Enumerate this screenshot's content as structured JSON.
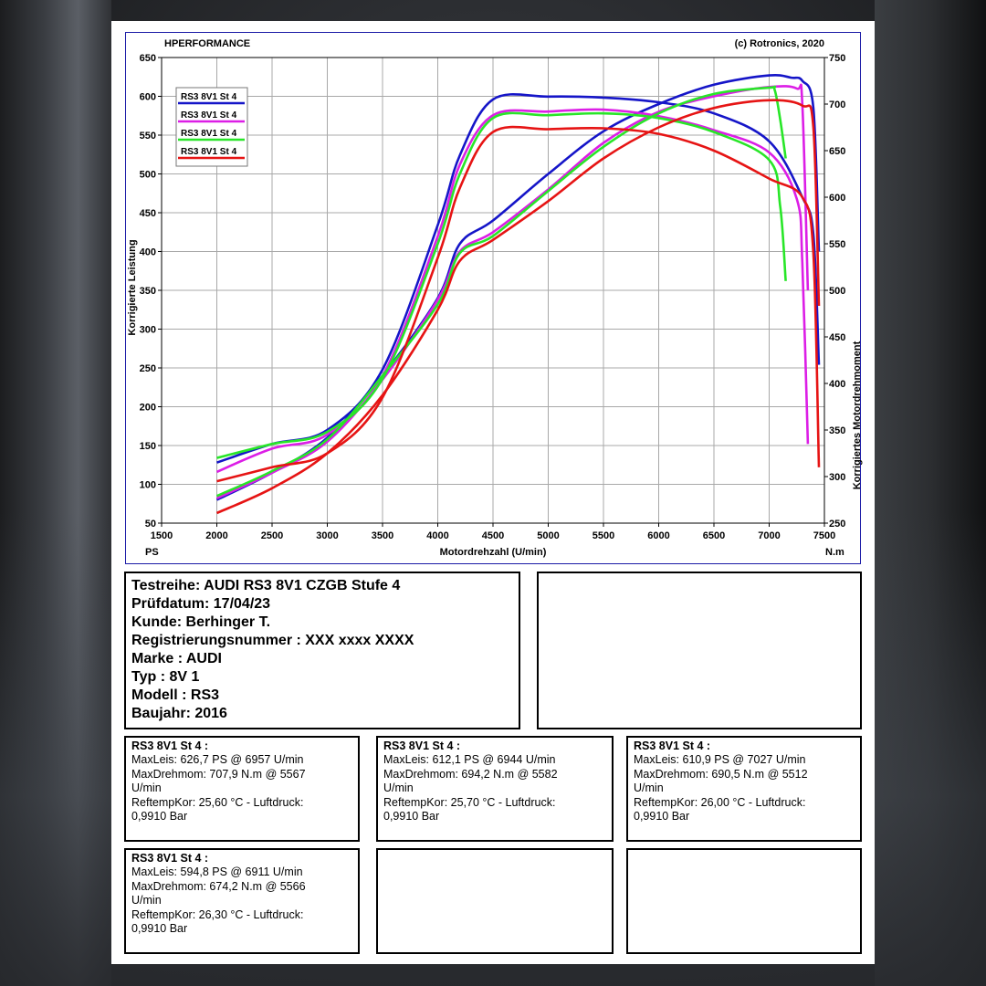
{
  "header": {
    "left": "HPERFORMANCE",
    "right": "(c) Rotronics, 2020"
  },
  "chart_data": {
    "type": "line",
    "xlabel": "Motordrehzahl (U/min)",
    "ylabel_left": "Korrigierte Leistung",
    "ylabel_right": "Korrigiertes Motordrehmoment",
    "unit_left": "PS",
    "unit_right": "N.m",
    "xlim": [
      1500,
      7500
    ],
    "ylim_left": [
      50,
      650
    ],
    "ylim_right": [
      250,
      750
    ],
    "x_ticks": [
      1500,
      2000,
      2500,
      3000,
      3500,
      4000,
      4500,
      5000,
      5500,
      6000,
      6500,
      7000,
      7500
    ],
    "y_ticks_left": [
      50,
      100,
      150,
      200,
      250,
      300,
      350,
      400,
      450,
      500,
      550,
      600,
      650
    ],
    "y_ticks_right": [
      250,
      300,
      350,
      400,
      450,
      500,
      550,
      600,
      650,
      700,
      750
    ],
    "grid": true,
    "legend_position": "top-left",
    "series": [
      {
        "name": "RS3 8V1 St 4",
        "color": "#1515c8",
        "power": [
          [
            2000,
            80
          ],
          [
            2500,
            115
          ],
          [
            3000,
            160
          ],
          [
            3500,
            240
          ],
          [
            4000,
            340
          ],
          [
            4200,
            410
          ],
          [
            4500,
            440
          ],
          [
            5000,
            500
          ],
          [
            5500,
            555
          ],
          [
            6000,
            590
          ],
          [
            6500,
            615
          ],
          [
            7000,
            627
          ],
          [
            7200,
            624
          ],
          [
            7300,
            620
          ],
          [
            7400,
            585
          ],
          [
            7450,
            400
          ]
        ],
        "torque": [
          [
            2000,
            315
          ],
          [
            2500,
            335
          ],
          [
            3000,
            350
          ],
          [
            3500,
            415
          ],
          [
            4000,
            570
          ],
          [
            4200,
            645
          ],
          [
            4500,
            705
          ],
          [
            5000,
            708
          ],
          [
            5500,
            707
          ],
          [
            6000,
            702
          ],
          [
            6500,
            690
          ],
          [
            7000,
            660
          ],
          [
            7300,
            600
          ],
          [
            7400,
            560
          ],
          [
            7450,
            420
          ]
        ]
      },
      {
        "name": "RS3 8V1 St 4",
        "color": "#dc1ee6",
        "power": [
          [
            2000,
            82
          ],
          [
            2500,
            115
          ],
          [
            3000,
            155
          ],
          [
            3500,
            235
          ],
          [
            4000,
            338
          ],
          [
            4200,
            400
          ],
          [
            4500,
            425
          ],
          [
            5000,
            480
          ],
          [
            5500,
            540
          ],
          [
            6000,
            580
          ],
          [
            6500,
            600
          ],
          [
            7000,
            612
          ],
          [
            7250,
            610
          ],
          [
            7300,
            590
          ],
          [
            7350,
            350
          ]
        ],
        "torque": [
          [
            2000,
            305
          ],
          [
            2500,
            330
          ],
          [
            3000,
            345
          ],
          [
            3500,
            408
          ],
          [
            4000,
            558
          ],
          [
            4200,
            635
          ],
          [
            4500,
            688
          ],
          [
            5000,
            692
          ],
          [
            5500,
            694
          ],
          [
            6000,
            687
          ],
          [
            6500,
            672
          ],
          [
            7000,
            648
          ],
          [
            7250,
            598
          ],
          [
            7300,
            530
          ],
          [
            7350,
            335
          ]
        ]
      },
      {
        "name": "RS3 8V1 St 4",
        "color": "#28e628",
        "power": [
          [
            2000,
            85
          ],
          [
            2500,
            117
          ],
          [
            3000,
            158
          ],
          [
            3500,
            240
          ],
          [
            4000,
            332
          ],
          [
            4200,
            398
          ],
          [
            4500,
            420
          ],
          [
            5000,
            478
          ],
          [
            5500,
            535
          ],
          [
            6000,
            578
          ],
          [
            6500,
            603
          ],
          [
            7000,
            611
          ],
          [
            7050,
            608
          ],
          [
            7100,
            570
          ],
          [
            7150,
            520
          ]
        ],
        "torque": [
          [
            2000,
            320
          ],
          [
            2500,
            335
          ],
          [
            3000,
            348
          ],
          [
            3500,
            405
          ],
          [
            4000,
            550
          ],
          [
            4200,
            625
          ],
          [
            4500,
            685
          ],
          [
            5000,
            688
          ],
          [
            5500,
            690
          ],
          [
            6000,
            685
          ],
          [
            6500,
            670
          ],
          [
            7000,
            640
          ],
          [
            7100,
            590
          ],
          [
            7150,
            510
          ]
        ]
      },
      {
        "name": "RS3 8V1 St 4",
        "color": "#e61414",
        "power": [
          [
            2000,
            63
          ],
          [
            2500,
            95
          ],
          [
            3000,
            140
          ],
          [
            3500,
            215
          ],
          [
            4000,
            325
          ],
          [
            4200,
            388
          ],
          [
            4500,
            415
          ],
          [
            5000,
            465
          ],
          [
            5500,
            520
          ],
          [
            6000,
            560
          ],
          [
            6500,
            585
          ],
          [
            7000,
            595
          ],
          [
            7300,
            588
          ],
          [
            7400,
            560
          ],
          [
            7450,
            330
          ]
        ],
        "torque": [
          [
            2000,
            295
          ],
          [
            2500,
            310
          ],
          [
            3000,
            325
          ],
          [
            3500,
            385
          ],
          [
            4000,
            535
          ],
          [
            4200,
            610
          ],
          [
            4500,
            670
          ],
          [
            5000,
            673
          ],
          [
            5500,
            674
          ],
          [
            6000,
            668
          ],
          [
            6500,
            650
          ],
          [
            7000,
            620
          ],
          [
            7300,
            600
          ],
          [
            7400,
            540
          ],
          [
            7450,
            310
          ]
        ]
      }
    ]
  },
  "info": {
    "testreihe": "Testreihe: AUDI RS3 8V1 CZGB Stufe 4",
    "pruefdatum": "Prüfdatum: 17/04/23",
    "kunde": "Kunde: Berhinger T.",
    "registrierung": "Registrierungsnummer   : XXX xxxx XXXX",
    "marke": "Marke  : AUDI",
    "typ": "Typ  : 8V 1",
    "modell": "Modell  : RS3",
    "baujahr": "Baujahr: 2016"
  },
  "results": [
    {
      "title": "RS3 8V1 St 4 :",
      "maxleis": "MaxLeis: 626,7 PS @ 6957 U/min",
      "maxdreh": "MaxDrehmom: 707,9 N.m @ 5567",
      "maxdreh_unit": "U/min",
      "reftemp": "ReftempKor: 25,60 °C - Luftdruck:",
      "luftdruck": "0,9910 Bar"
    },
    {
      "title": "RS3 8V1 St 4 :",
      "maxleis": "MaxLeis: 612,1 PS @ 6944 U/min",
      "maxdreh": "MaxDrehmom: 694,2 N.m @ 5582",
      "maxdreh_unit": "U/min",
      "reftemp": "ReftempKor: 25,70 °C - Luftdruck:",
      "luftdruck": "0,9910 Bar"
    },
    {
      "title": "RS3 8V1 St 4 :",
      "maxleis": "MaxLeis: 610,9 PS @ 7027 U/min",
      "maxdreh": "MaxDrehmom: 690,5 N.m @ 5512",
      "maxdreh_unit": "U/min",
      "reftemp": "ReftempKor: 26,00 °C - Luftdruck:",
      "luftdruck": "0,9910 Bar"
    },
    {
      "title": "RS3 8V1 St 4 :",
      "maxleis": "MaxLeis: 594,8 PS @ 6911 U/min",
      "maxdreh": "MaxDrehmom: 674,2 N.m @ 5566",
      "maxdreh_unit": "U/min",
      "reftemp": "ReftempKor: 26,30 °C - Luftdruck:",
      "luftdruck": "0,9910 Bar"
    }
  ]
}
